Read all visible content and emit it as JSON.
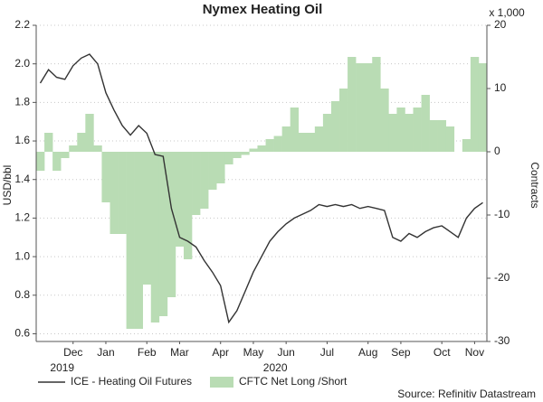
{
  "chart_data": {
    "type": "bar-line",
    "title": "Nymex Heating Oil",
    "ylabel": "USD/bbl",
    "y2label": "Contracts",
    "y2unit": "x 1,000",
    "source": "Source: Refinitiv Datastream",
    "categories": [
      null,
      null,
      null,
      null,
      "Dec",
      null,
      null,
      null,
      "Jan",
      null,
      null,
      null,
      null,
      "Feb",
      null,
      null,
      null,
      "Mar",
      null,
      null,
      null,
      null,
      "Apr",
      null,
      null,
      null,
      "May",
      null,
      null,
      null,
      "Jun",
      null,
      null,
      null,
      null,
      "Jul",
      null,
      null,
      null,
      null,
      "Aug",
      null,
      null,
      null,
      "Sep",
      null,
      null,
      null,
      null,
      "Oct",
      null,
      null,
      null,
      "Nov",
      null
    ],
    "category_years": [
      null,
      null,
      null,
      null,
      "2019",
      null,
      null,
      null,
      null,
      null,
      null,
      null,
      null,
      null,
      null,
      null,
      null,
      null,
      null,
      null,
      null,
      null,
      null,
      null,
      null,
      null,
      null,
      null,
      null,
      null,
      "2020",
      null,
      null,
      null,
      null,
      null,
      null,
      null,
      null,
      null,
      null,
      null,
      null,
      null,
      null,
      null,
      null,
      null,
      null,
      null,
      null,
      null,
      null,
      null,
      null
    ],
    "series": [
      {
        "name": "ICE - Heating Oil Futures",
        "type": "line",
        "axis": "y",
        "color": "#333333",
        "values": [
          1.9,
          1.97,
          1.93,
          1.92,
          1.99,
          2.03,
          2.05,
          2.0,
          1.85,
          1.76,
          1.68,
          1.63,
          1.68,
          1.64,
          1.53,
          1.52,
          1.25,
          1.1,
          1.08,
          1.05,
          0.98,
          0.92,
          0.85,
          0.66,
          0.72,
          0.82,
          0.92,
          1.0,
          1.08,
          1.13,
          1.17,
          1.2,
          1.22,
          1.24,
          1.27,
          1.26,
          1.27,
          1.26,
          1.27,
          1.25,
          1.26,
          1.25,
          1.24,
          1.1,
          1.08,
          1.12,
          1.1,
          1.13,
          1.15,
          1.16,
          1.13,
          1.1,
          1.2,
          1.25,
          1.28
        ]
      },
      {
        "name": "CFTC Net Long /Short",
        "type": "bar",
        "axis": "y2",
        "color": "#b9dcb4",
        "values": [
          -3,
          3,
          -3,
          -1,
          1,
          3,
          6,
          1,
          -8,
          -13,
          -13,
          -28,
          -28,
          -21,
          -27,
          -26,
          -23,
          -15,
          -17,
          -10,
          -9,
          -6,
          -5,
          -2,
          -1,
          -0.5,
          0.5,
          1,
          2,
          2.5,
          4,
          7,
          3,
          3,
          4,
          6,
          8,
          10,
          15,
          14,
          14,
          15,
          10,
          6,
          7,
          6,
          7,
          9,
          5,
          5,
          4,
          0,
          2,
          15,
          14
        ]
      }
    ],
    "ylim": [
      0.56,
      2.2
    ],
    "yticks": [
      0.6,
      0.8,
      {
        "value": 1.0,
        "label": "1.0"
      },
      1.2,
      1.4,
      1.6,
      1.8,
      {
        "value": 2.0,
        "label": "2.0"
      },
      2.2
    ],
    "y2lim": [
      -30,
      20
    ],
    "y2ticks": [
      -30,
      -20,
      -10,
      0,
      10,
      20
    ],
    "grid": true
  }
}
